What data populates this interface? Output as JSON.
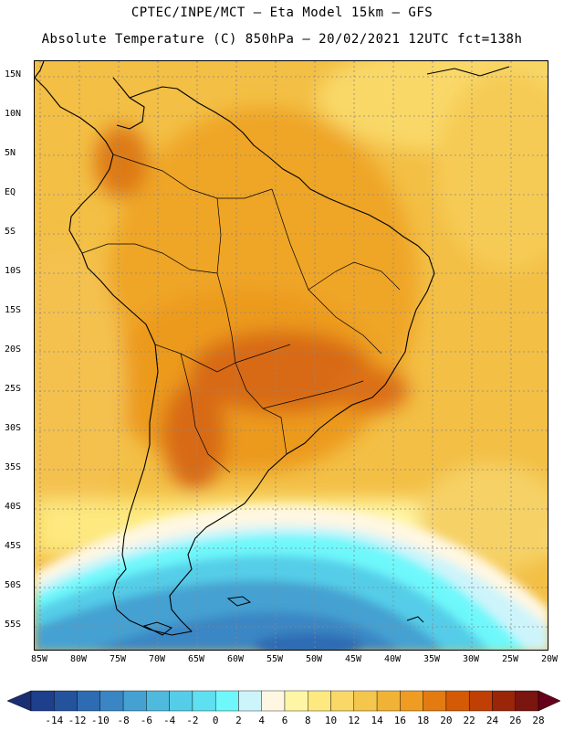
{
  "header": {
    "line1": "CPTEC/INPE/MCT –  Eta Model 15km – GFS",
    "line2": "Absolute Temperature (C) 850hPa – 20/02/2021 12UTC fct=138h"
  },
  "map": {
    "lat_ticks": [
      "15N",
      "10N",
      "5N",
      "EQ",
      "5S",
      "10S",
      "15S",
      "20S",
      "25S",
      "30S",
      "35S",
      "40S",
      "45S",
      "50S",
      "55S"
    ],
    "lon_ticks": [
      "85W",
      "80W",
      "75W",
      "70W",
      "65W",
      "60W",
      "55W",
      "50W",
      "45W",
      "40W",
      "35W",
      "30W",
      "25W",
      "20W"
    ]
  },
  "colorbar": {
    "labels": [
      "-14",
      "-12",
      "-10",
      "-8",
      "-6",
      "-4",
      "-2",
      "0",
      "2",
      "4",
      "6",
      "8",
      "10",
      "12",
      "14",
      "16",
      "18",
      "20",
      "22",
      "24",
      "26",
      "28"
    ],
    "colors": [
      "#1d3f8c",
      "#24539e",
      "#2d6cb3",
      "#3a86c4",
      "#45a1d2",
      "#4fb9de",
      "#55cde8",
      "#5fe0f0",
      "#6ef8fb",
      "#cdf4fb",
      "#fff7e2",
      "#fff6a5",
      "#fde97f",
      "#f9d867",
      "#f4c64c",
      "#f1b335",
      "#ef9d22",
      "#e37b10",
      "#d45a05",
      "#bf3f04",
      "#9b2509",
      "#7a1510"
    ]
  }
}
